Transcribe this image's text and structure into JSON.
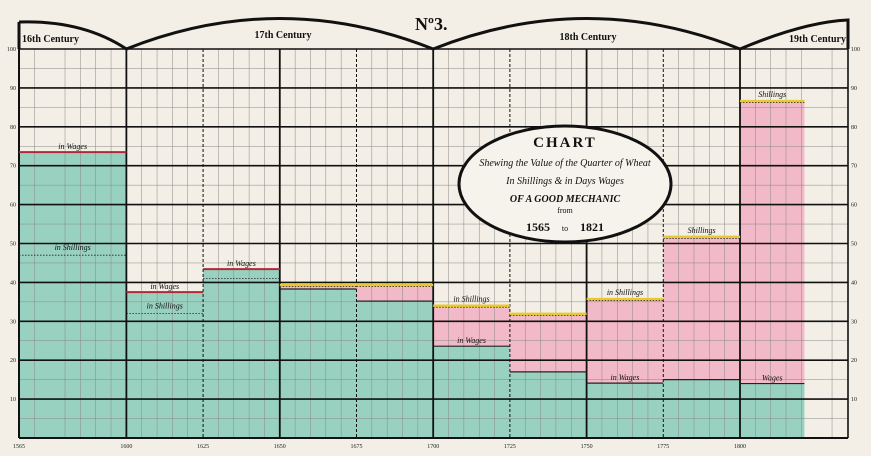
{
  "chart_data": {
    "type": "bar",
    "plate_number": "Nº3.",
    "cartouche": {
      "line1": "CHART",
      "line2": "Shewing the Value of the Quarter of Wheat",
      "line3": "In Shillings & in Days Wages",
      "line4": "OF A GOOD MECHANIC",
      "line5": "from",
      "line6a": "1565",
      "line6b": "to",
      "line6c": "1821"
    },
    "centuries": [
      "16th Century",
      "17th Century",
      "18th Century",
      "19th Century"
    ],
    "xlim": [
      1565,
      1835
    ],
    "ylim": [
      0,
      100
    ],
    "x_ticks": [
      1565,
      1600,
      1625,
      1650,
      1675,
      1700,
      1725,
      1750,
      1775,
      1800
    ],
    "x_tick_labels": [
      "1565",
      "1600",
      "1625",
      "1650",
      "1675",
      "1700",
      "1725",
      "1750",
      "1775",
      "1800"
    ],
    "y_ticks": [
      10,
      20,
      30,
      40,
      50,
      60,
      70,
      80,
      90,
      100
    ],
    "y_tick_labels": [
      "10",
      "20",
      "30",
      "40",
      "50",
      "60",
      "70",
      "80",
      "90",
      "100"
    ],
    "grid": true,
    "colors": {
      "wages_fill": "#8fcdbb",
      "shillings_fill": "#f2b9c8",
      "wages_line": "#b0283a",
      "shillings_line": "#e8c930"
    },
    "periods": [
      {
        "start": 1565,
        "end": 1600,
        "in_wages": 73.5,
        "in_shillings": 47,
        "wage_label": "in Wages",
        "shilling_label": "in Shillings"
      },
      {
        "start": 1600,
        "end": 1625,
        "in_wages": 37.5,
        "in_shillings": 32,
        "wage_label": "in Wages",
        "shilling_label": "in Shillings"
      },
      {
        "start": 1625,
        "end": 1650,
        "in_wages": 43.4,
        "in_shillings": 41,
        "wage_label": "in Wages",
        "shilling_label": ""
      },
      {
        "start": 1650,
        "end": 1675,
        "in_wages": 38.3,
        "in_shillings": 39.3,
        "wage_label": "",
        "shilling_label": ""
      },
      {
        "start": 1675,
        "end": 1700,
        "in_wages": 35.2,
        "in_shillings": 39.3,
        "wage_label": "",
        "shilling_label": ""
      },
      {
        "start": 1700,
        "end": 1725,
        "in_wages": 23.6,
        "in_shillings": 34,
        "wage_label": "in Wages",
        "shilling_label": "in Shillings"
      },
      {
        "start": 1725,
        "end": 1750,
        "in_wages": 17,
        "in_shillings": 31.9,
        "wage_label": "",
        "shilling_label": ""
      },
      {
        "start": 1750,
        "end": 1775,
        "in_wages": 14.1,
        "in_shillings": 35.7,
        "wage_label": "in Wages",
        "shilling_label": "in Shillings"
      },
      {
        "start": 1775,
        "end": 1800,
        "in_wages": 15,
        "in_shillings": 51.7,
        "wage_label": "",
        "shilling_label": "Shillings"
      },
      {
        "start": 1800,
        "end": 1821,
        "in_wages": 14,
        "in_shillings": 86.6,
        "wage_label": "Wages",
        "shilling_label": "Shillings"
      }
    ]
  }
}
